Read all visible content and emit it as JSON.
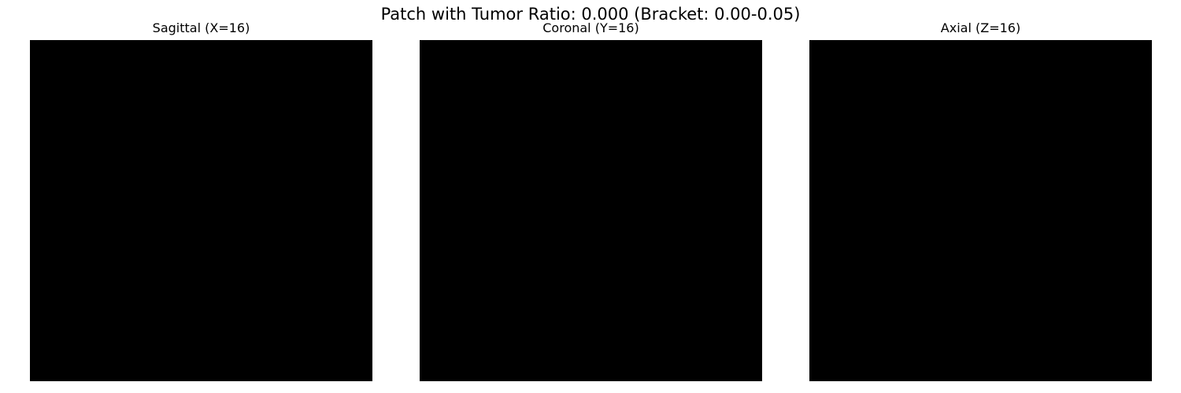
{
  "figure": {
    "title": "Patch with Tumor Ratio: 0.000 (Bracket: 0.00-0.05)"
  },
  "panels": [
    {
      "title": "Sagittal (X=16)",
      "image_color": "#000000"
    },
    {
      "title": "Coronal (Y=16)",
      "image_color": "#000000"
    },
    {
      "title": "Axial (Z=16)",
      "image_color": "#000000"
    }
  ]
}
